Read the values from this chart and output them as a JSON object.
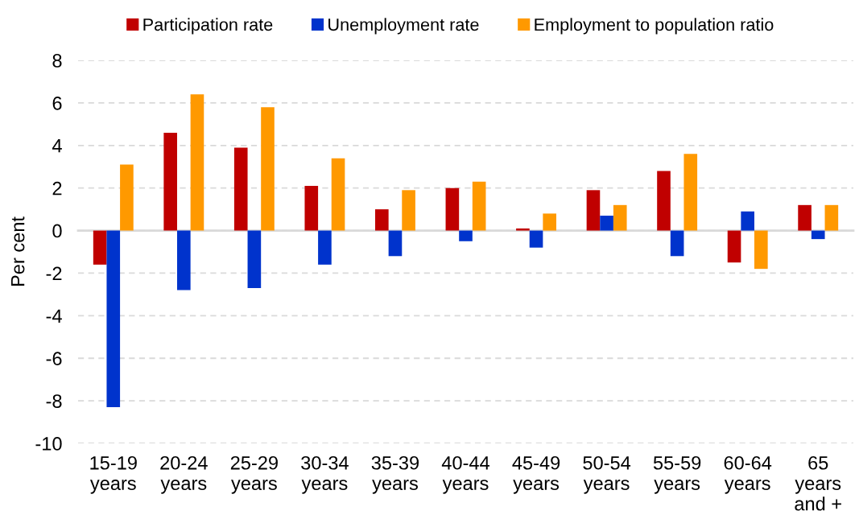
{
  "chart_data": {
    "type": "bar",
    "ylabel": "Per cent",
    "categories": [
      "15-19\nyears",
      "20-24\nyears",
      "25-29\nyears",
      "30-34\nyears",
      "35-39\nyears",
      "40-44\nyears",
      "45-49\nyears",
      "50-54\nyears",
      "55-59\nyears",
      "60-64\nyears",
      "65\nyears\nand +"
    ],
    "series": [
      {
        "name": "Participation rate",
        "color": "#c00000",
        "values": [
          -1.6,
          4.6,
          3.9,
          2.1,
          1.0,
          2.0,
          0.1,
          1.9,
          2.8,
          -1.5,
          1.2
        ]
      },
      {
        "name": "Unemployment rate",
        "color": "#0033cc",
        "values": [
          -8.3,
          -2.8,
          -2.7,
          -1.6,
          -1.2,
          -0.5,
          -0.8,
          0.7,
          -1.2,
          0.9,
          -0.4
        ]
      },
      {
        "name": "Employment to population ratio",
        "color": "#ff9900",
        "values": [
          3.1,
          6.4,
          5.8,
          3.4,
          1.9,
          2.3,
          0.8,
          1.2,
          3.6,
          -1.8,
          1.2
        ]
      }
    ],
    "ylim": [
      -10,
      8
    ],
    "yticks": [
      -10,
      -8,
      -6,
      -4,
      -2,
      0,
      2,
      4,
      6,
      8
    ],
    "grid": "y",
    "legend": "top"
  }
}
